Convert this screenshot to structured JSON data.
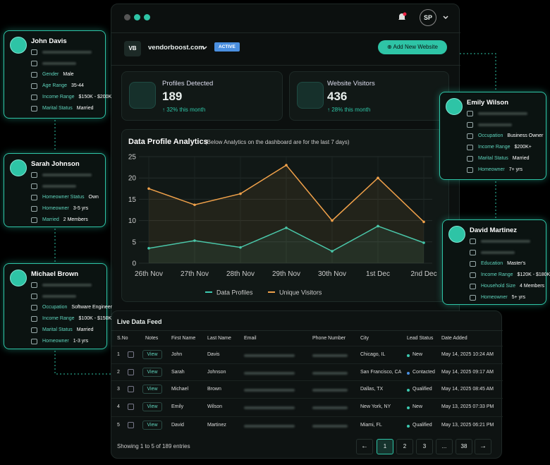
{
  "header": {
    "logo": "VB",
    "site": "vendorboost.com",
    "badge": "ACTIVE",
    "button": "Add New Website",
    "avatar": "SP"
  },
  "stats": [
    {
      "label": "Profiles Detected",
      "value": 189,
      "change": "32% this month"
    },
    {
      "label": "Website Visitors",
      "value": 436,
      "change": "28% this month"
    }
  ],
  "chart_data": {
    "type": "line",
    "title": "Data Profile Analytics",
    "subtitle": "(Below Analytics on the dashboard are for the last 7 days)",
    "categories": [
      "26th Nov",
      "27th Nov",
      "28th Nov",
      "29th Nov",
      "30th Nov",
      "1st Dec",
      "2nd Dec"
    ],
    "series": [
      {
        "name": "Data Profiles",
        "color": "#3cc9b0",
        "values": [
          3.5,
          5.3,
          3.7,
          8.3,
          2.8,
          8.7,
          4.8
        ]
      },
      {
        "name": "Unique Visitors",
        "color": "#f0a14a",
        "values": [
          17.5,
          13.7,
          16.3,
          23,
          10,
          20,
          9.7
        ]
      }
    ],
    "ylim": [
      0,
      25
    ],
    "yticks": [
      0,
      5,
      10,
      15,
      20,
      25
    ],
    "grid": true
  },
  "profiles": [
    {
      "name": "John Davis",
      "fields": [
        {
          "label": "Gender",
          "value": "Male"
        },
        {
          "label": "Age Range",
          "value": "35-44"
        },
        {
          "label": "Income Range",
          "value": "$150K - $200K"
        },
        {
          "label": "Marital Status",
          "value": "Married"
        }
      ]
    },
    {
      "name": "Sarah Johnson",
      "fields": [
        {
          "label": "Homeowner Status",
          "value": "Own"
        },
        {
          "label": "Homeowner",
          "value": "3-5 yrs"
        },
        {
          "label": "Married",
          "value": "2 Members"
        }
      ]
    },
    {
      "name": "Michael Brown",
      "fields": [
        {
          "label": "Occupation",
          "value": "Software Engineer"
        },
        {
          "label": "Income Range",
          "value": "$100K - $150K"
        },
        {
          "label": "Marital Status",
          "value": "Married"
        },
        {
          "label": "Homeowner",
          "value": "1-3 yrs"
        }
      ]
    },
    {
      "name": "Emily Wilson",
      "fields": [
        {
          "label": "Occupation",
          "value": "Business Owner"
        },
        {
          "label": "Income Range",
          "value": "$200K+"
        },
        {
          "label": "Marital Status",
          "value": "Married"
        },
        {
          "label": "Homeowner",
          "value": "7+ yrs"
        }
      ]
    },
    {
      "name": "David Martinez",
      "fields": [
        {
          "label": "Education",
          "value": "Master's"
        },
        {
          "label": "Income Range",
          "value": "$120K - $180K"
        },
        {
          "label": "Household Size",
          "value": "4 Members"
        },
        {
          "label": "Homeowner",
          "value": "5+ yrs"
        }
      ]
    }
  ],
  "table": {
    "title": "Live Data Feed",
    "columns": [
      "S.No",
      "Notes",
      "First Name",
      "Last Name",
      "Email",
      "Phone Number",
      "City",
      "Lead Status",
      "Date Added"
    ],
    "view": "View",
    "rows": [
      {
        "no": 1,
        "first": "John",
        "last": "Davis",
        "city": "Chicago, IL",
        "status": "New",
        "status_color": "#3cc9b0",
        "date": "May 14, 2025 10:24 AM"
      },
      {
        "no": 2,
        "first": "Sarah",
        "last": "Johnson",
        "city": "San Francisco, CA",
        "status": "Contacted",
        "status_color": "#4a8fe0",
        "date": "May 14, 2025 09:17 AM"
      },
      {
        "no": 3,
        "first": "Michael",
        "last": "Brown",
        "city": "Dallas, TX",
        "status": "Qualified",
        "status_color": "#3cc9b0",
        "date": "May 14, 2025 08:45 AM"
      },
      {
        "no": 4,
        "first": "Emily",
        "last": "Wilson",
        "city": "New York, NY",
        "status": "New",
        "status_color": "#3cc9b0",
        "date": "May 13, 2025 07:33 PM"
      },
      {
        "no": 5,
        "first": "David",
        "last": "Martinez",
        "city": "Miami, FL",
        "status": "Qualified",
        "status_color": "#3cc9b0",
        "date": "May 13, 2025 06:21 PM"
      }
    ],
    "footer": "Showing 1 to 5 of 189 entries",
    "pages": [
      "1",
      "2",
      "3",
      "...",
      "38"
    ]
  }
}
